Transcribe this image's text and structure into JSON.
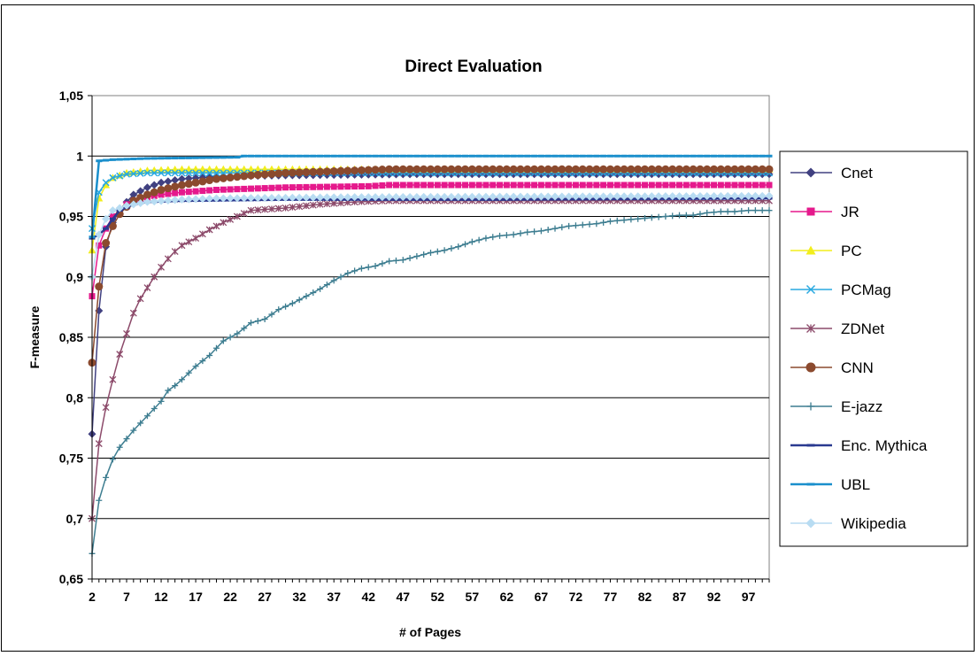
{
  "chart_data": {
    "type": "line",
    "title": "Direct Evaluation",
    "xlabel": "# of Pages",
    "ylabel": "F-measure",
    "xlim": [
      2,
      100
    ],
    "ylim": [
      0.65,
      1.05
    ],
    "x_ticks": [
      2,
      7,
      12,
      17,
      22,
      27,
      32,
      37,
      42,
      47,
      52,
      57,
      62,
      67,
      72,
      77,
      82,
      87,
      92,
      97
    ],
    "x_tick_labels": [
      "2",
      "7",
      "12",
      "17",
      "22",
      "27",
      "32",
      "37",
      "42",
      "47",
      "52",
      "57",
      "62",
      "67",
      "72",
      "77",
      "82",
      "87",
      "92",
      "97"
    ],
    "y_ticks": [
      0.65,
      0.7,
      0.75,
      0.8,
      0.85,
      0.9,
      0.95,
      1.0,
      1.05
    ],
    "y_tick_labels": [
      "0,65",
      "0,7",
      "0,75",
      "0,8",
      "0,85",
      "0,9",
      "0,95",
      "1",
      "1,05"
    ],
    "grid": "horizontal",
    "legend_position": "right",
    "series": [
      {
        "name": "Cnet",
        "color": "#404080",
        "marker": "diamond",
        "points": [
          [
            2,
            0.77
          ],
          [
            3,
            0.872
          ],
          [
            4,
            0.925
          ],
          [
            5,
            0.945
          ],
          [
            6,
            0.955
          ],
          [
            7,
            0.962
          ],
          [
            8,
            0.968
          ],
          [
            10,
            0.974
          ],
          [
            12,
            0.978
          ],
          [
            15,
            0.981
          ],
          [
            20,
            0.983
          ],
          [
            30,
            0.984
          ],
          [
            50,
            0.985
          ],
          [
            100,
            0.985
          ]
        ]
      },
      {
        "name": "JR",
        "color": "#e5198c",
        "marker": "square",
        "points": [
          [
            2,
            0.884
          ],
          [
            3,
            0.926
          ],
          [
            4,
            0.94
          ],
          [
            5,
            0.95
          ],
          [
            6,
            0.955
          ],
          [
            7,
            0.96
          ],
          [
            8,
            0.963
          ],
          [
            10,
            0.966
          ],
          [
            12,
            0.968
          ],
          [
            15,
            0.97
          ],
          [
            20,
            0.972
          ],
          [
            30,
            0.974
          ],
          [
            42,
            0.975
          ],
          [
            45,
            0.976
          ],
          [
            100,
            0.976
          ]
        ]
      },
      {
        "name": "PC",
        "color": "#f2ee1c",
        "marker": "triangle",
        "points": [
          [
            2,
            0.922
          ],
          [
            3,
            0.965
          ],
          [
            4,
            0.976
          ],
          [
            5,
            0.982
          ],
          [
            7,
            0.986
          ],
          [
            10,
            0.988
          ],
          [
            15,
            0.989
          ],
          [
            30,
            0.989
          ],
          [
            100,
            0.989
          ]
        ]
      },
      {
        "name": "PCMag",
        "color": "#28a8e0",
        "marker": "x",
        "points": [
          [
            2,
            0.94
          ],
          [
            3,
            0.97
          ],
          [
            4,
            0.978
          ],
          [
            5,
            0.982
          ],
          [
            7,
            0.985
          ],
          [
            10,
            0.986
          ],
          [
            30,
            0.986
          ],
          [
            100,
            0.986
          ]
        ]
      },
      {
        "name": "ZDNet",
        "color": "#8c4a6a",
        "marker": "star",
        "points": [
          [
            2,
            0.7
          ],
          [
            3,
            0.762
          ],
          [
            4,
            0.792
          ],
          [
            5,
            0.815
          ],
          [
            6,
            0.836
          ],
          [
            7,
            0.853
          ],
          [
            8,
            0.87
          ],
          [
            9,
            0.882
          ],
          [
            10,
            0.891
          ],
          [
            11,
            0.9
          ],
          [
            12,
            0.908
          ],
          [
            13,
            0.915
          ],
          [
            14,
            0.921
          ],
          [
            15,
            0.926
          ],
          [
            17,
            0.932
          ],
          [
            19,
            0.939
          ],
          [
            21,
            0.945
          ],
          [
            23,
            0.95
          ],
          [
            25,
            0.955
          ],
          [
            30,
            0.957
          ],
          [
            35,
            0.96
          ],
          [
            40,
            0.962
          ],
          [
            45,
            0.963
          ],
          [
            60,
            0.963
          ],
          [
            100,
            0.963
          ]
        ]
      },
      {
        "name": "CNN",
        "color": "#8b4a2e",
        "marker": "circle",
        "points": [
          [
            2,
            0.829
          ],
          [
            3,
            0.892
          ],
          [
            4,
            0.928
          ],
          [
            5,
            0.942
          ],
          [
            6,
            0.952
          ],
          [
            7,
            0.958
          ],
          [
            8,
            0.963
          ],
          [
            10,
            0.968
          ],
          [
            12,
            0.972
          ],
          [
            15,
            0.976
          ],
          [
            20,
            0.981
          ],
          [
            25,
            0.984
          ],
          [
            30,
            0.986
          ],
          [
            35,
            0.987
          ],
          [
            40,
            0.988
          ],
          [
            45,
            0.989
          ],
          [
            100,
            0.989
          ]
        ]
      },
      {
        "name": "E-jazz",
        "color": "#3d7d90",
        "marker": "plus",
        "points": [
          [
            2,
            0.671
          ],
          [
            3,
            0.715
          ],
          [
            4,
            0.734
          ],
          [
            5,
            0.749
          ],
          [
            6,
            0.759
          ],
          [
            7,
            0.766
          ],
          [
            8,
            0.773
          ],
          [
            9,
            0.779
          ],
          [
            10,
            0.785
          ],
          [
            11,
            0.791
          ],
          [
            12,
            0.797
          ],
          [
            13,
            0.806
          ],
          [
            14,
            0.81
          ],
          [
            15,
            0.815
          ],
          [
            17,
            0.826
          ],
          [
            19,
            0.835
          ],
          [
            21,
            0.847
          ],
          [
            23,
            0.853
          ],
          [
            25,
            0.862
          ],
          [
            27,
            0.865
          ],
          [
            29,
            0.873
          ],
          [
            31,
            0.878
          ],
          [
            33,
            0.884
          ],
          [
            35,
            0.89
          ],
          [
            37,
            0.897
          ],
          [
            39,
            0.903
          ],
          [
            41,
            0.907
          ],
          [
            43,
            0.909
          ],
          [
            45,
            0.913
          ],
          [
            47,
            0.914
          ],
          [
            49,
            0.917
          ],
          [
            51,
            0.92
          ],
          [
            53,
            0.922
          ],
          [
            55,
            0.925
          ],
          [
            57,
            0.929
          ],
          [
            59,
            0.932
          ],
          [
            61,
            0.934
          ],
          [
            63,
            0.935
          ],
          [
            65,
            0.937
          ],
          [
            67,
            0.938
          ],
          [
            69,
            0.94
          ],
          [
            71,
            0.942
          ],
          [
            73,
            0.943
          ],
          [
            75,
            0.944
          ],
          [
            77,
            0.946
          ],
          [
            79,
            0.947
          ],
          [
            81,
            0.948
          ],
          [
            83,
            0.949
          ],
          [
            85,
            0.95
          ],
          [
            87,
            0.951
          ],
          [
            89,
            0.951
          ],
          [
            91,
            0.953
          ],
          [
            93,
            0.954
          ],
          [
            95,
            0.954
          ],
          [
            97,
            0.955
          ],
          [
            100,
            0.955
          ]
        ]
      },
      {
        "name": "Enc. Mythica",
        "color": "#2a3a90",
        "marker": "dash",
        "points": [
          [
            2,
            0.932
          ],
          [
            3,
            0.935
          ],
          [
            4,
            0.94
          ],
          [
            5,
            0.948
          ],
          [
            6,
            0.955
          ],
          [
            8,
            0.96
          ],
          [
            10,
            0.962
          ],
          [
            15,
            0.963
          ],
          [
            30,
            0.964
          ],
          [
            60,
            0.964
          ],
          [
            100,
            0.965
          ]
        ]
      },
      {
        "name": "UBL",
        "color": "#1a8fcc",
        "marker": "dash",
        "points": [
          [
            2,
            0.933
          ],
          [
            3,
            0.996
          ],
          [
            5,
            0.997
          ],
          [
            10,
            0.998
          ],
          [
            23,
            0.999
          ],
          [
            24,
            1.0
          ],
          [
            100,
            1.0
          ]
        ]
      },
      {
        "name": "Wikipedia",
        "color": "#b8dcf2",
        "marker": "diamond",
        "points": [
          [
            2,
            0.9
          ],
          [
            3,
            0.935
          ],
          [
            4,
            0.948
          ],
          [
            5,
            0.955
          ],
          [
            7,
            0.959
          ],
          [
            10,
            0.962
          ],
          [
            15,
            0.964
          ],
          [
            20,
            0.965
          ],
          [
            40,
            0.966
          ],
          [
            100,
            0.967
          ]
        ]
      }
    ]
  }
}
